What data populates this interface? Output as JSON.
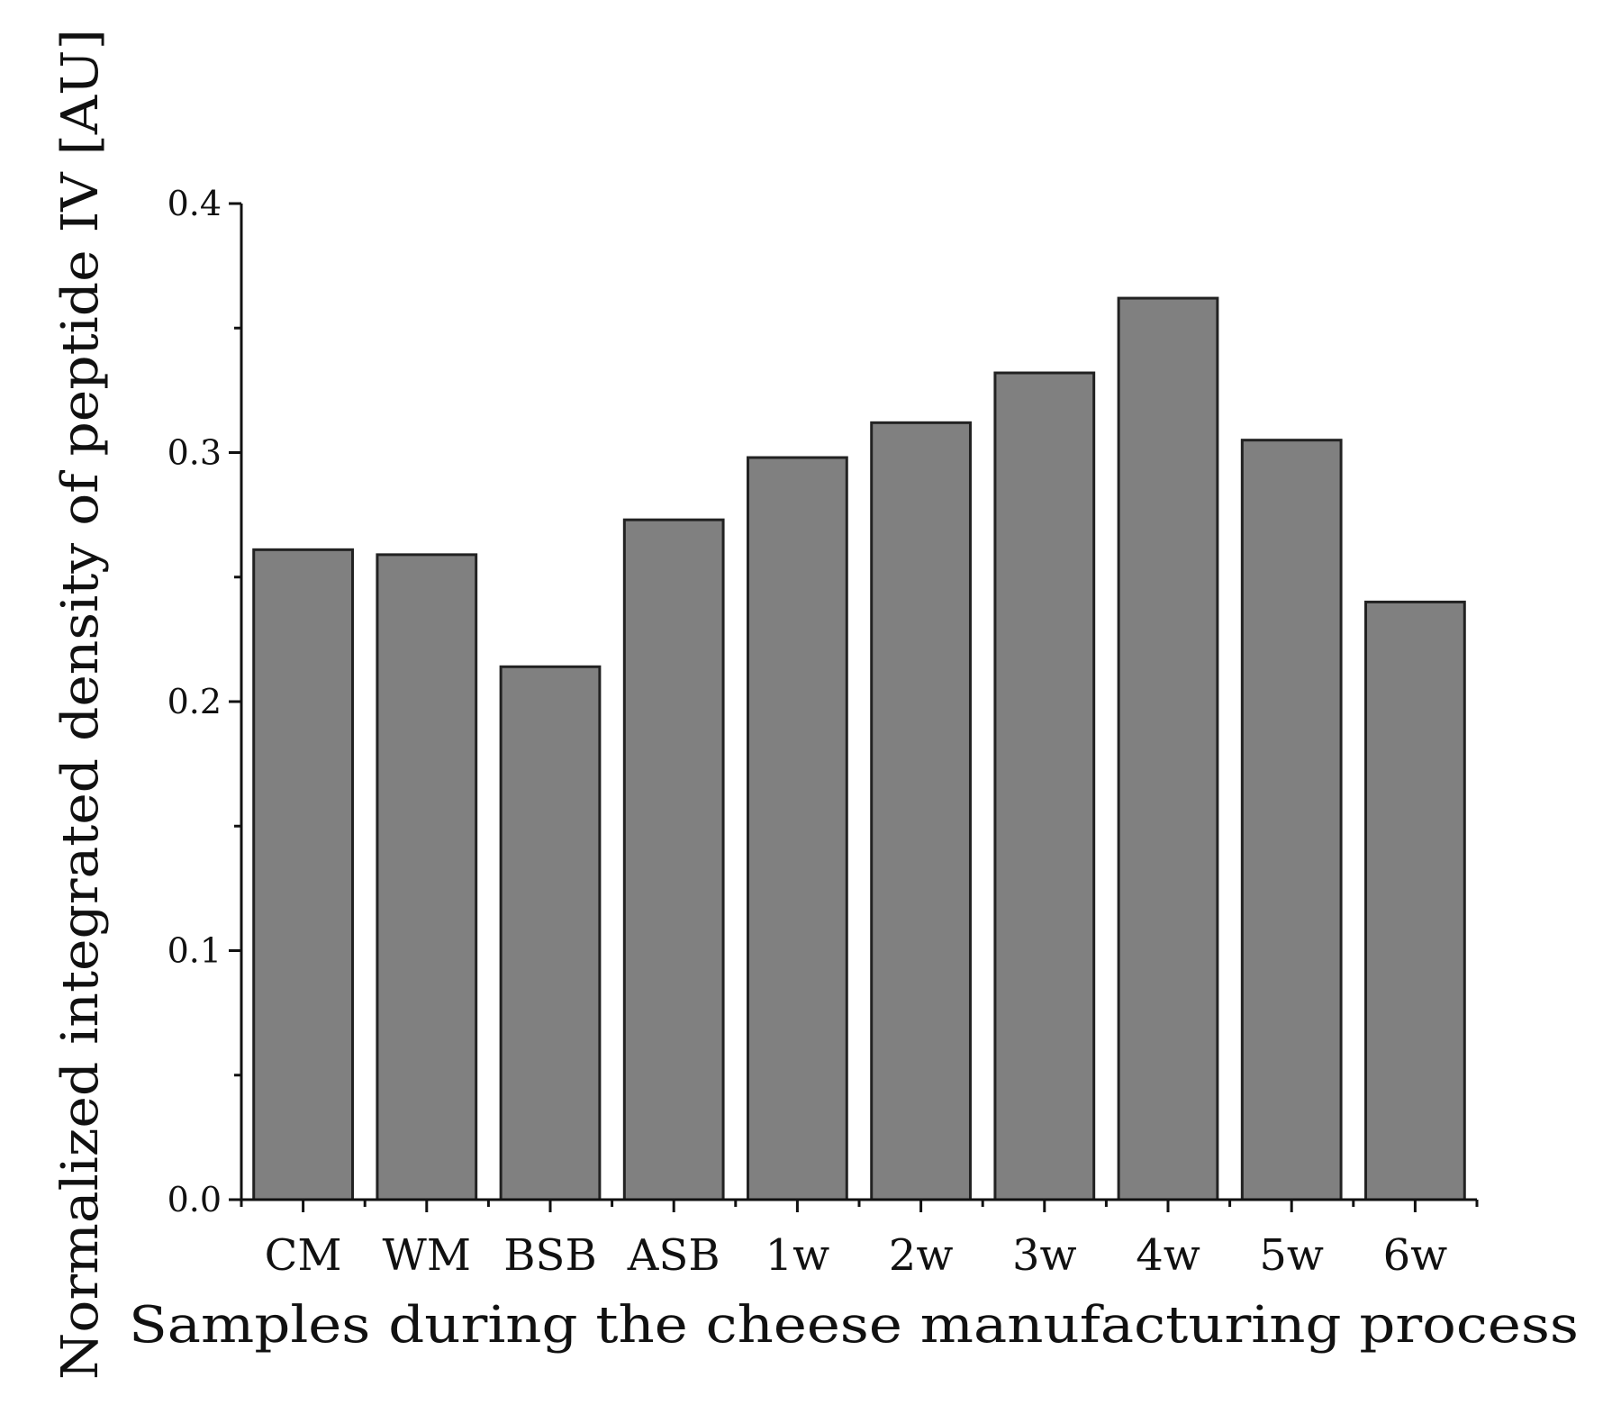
{
  "chart_data": {
    "type": "bar",
    "categories": [
      "CM",
      "WM",
      "BSB",
      "ASB",
      "1w",
      "2w",
      "3w",
      "4w",
      "5w",
      "6w"
    ],
    "values": [
      0.261,
      0.259,
      0.214,
      0.273,
      0.298,
      0.312,
      0.332,
      0.362,
      0.305,
      0.24
    ],
    "title": "",
    "xlabel": "Samples during the cheese manufacturing process",
    "ylabel": "Normalized integrated density of peptide IV [AU]",
    "ylim": [
      0,
      0.4
    ],
    "yticks": [
      "0.0",
      "0.1",
      "0.2",
      "0.3",
      "0.4"
    ],
    "ytick_values": [
      0,
      0.1,
      0.2,
      0.3,
      0.4
    ],
    "grid": false,
    "bar_color": "#808080",
    "edge_color": "#222222"
  }
}
